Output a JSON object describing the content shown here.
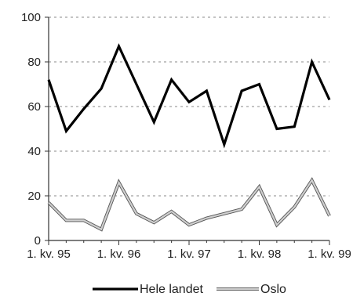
{
  "chart_data": {
    "type": "line",
    "ylim": [
      0,
      100
    ],
    "yticks": [
      0,
      20,
      40,
      60,
      80,
      100
    ],
    "grid": "horizontal dashed",
    "legend_position": "bottom",
    "x": [
      "1. kv. 95",
      "2. kv. 95",
      "3. kv. 95",
      "4. kv. 95",
      "1. kv. 96",
      "2. kv. 96",
      "3. kv. 96",
      "4. kv. 96",
      "1. kv. 97",
      "2. kv. 97",
      "3. kv. 97",
      "4. kv. 97",
      "1. kv. 98",
      "2. kv. 98",
      "3. kv. 98",
      "4. kv. 98",
      "1. kv. 99"
    ],
    "xtick_labels": [
      "1. kv. 95",
      "1. kv. 96",
      "1. kv. 97",
      "1. kv. 98",
      "1. kv. 99"
    ],
    "series": [
      {
        "name": "Hele landet",
        "color": "#000000",
        "values": [
          72,
          49,
          59,
          68,
          87,
          70,
          53,
          72,
          62,
          67,
          43,
          67,
          70,
          50,
          51,
          80,
          63
        ]
      },
      {
        "name": "Oslo",
        "color": "#9a9a9a",
        "values": [
          17,
          9,
          9,
          5,
          26,
          12,
          8,
          13,
          7,
          10,
          12,
          14,
          24,
          7,
          15,
          27,
          11
        ]
      }
    ]
  }
}
